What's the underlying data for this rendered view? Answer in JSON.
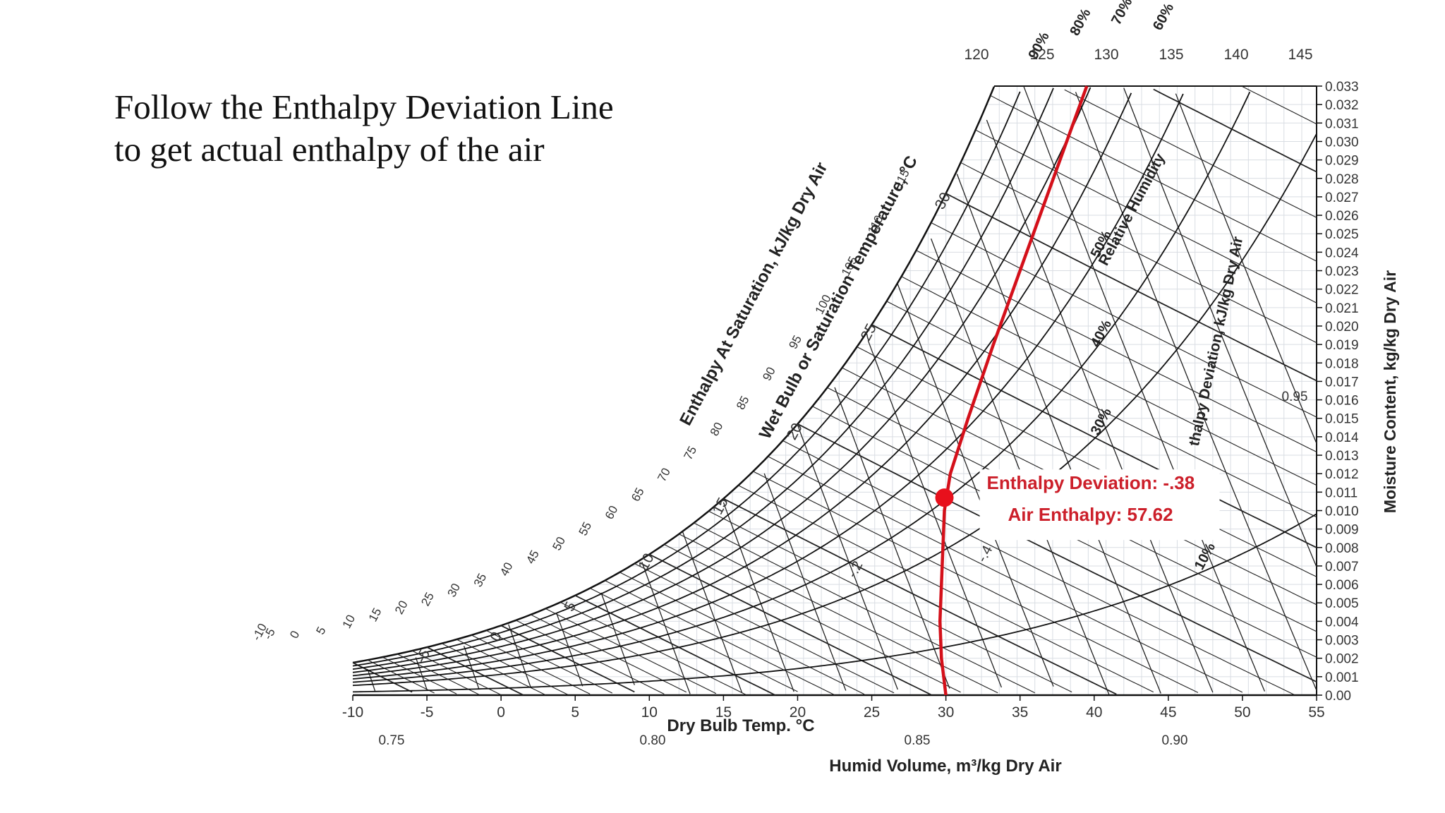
{
  "caption": {
    "line1": "Follow the Enthalpy Deviation Line",
    "line2": "to get actual enthalpy of the air"
  },
  "chart_data": {
    "type": "line",
    "title": "",
    "xlabel": "Dry Bulb Temp. °C",
    "ylabel": "Moisture Content, kg/kg Dry Air",
    "volume_label": "Humid Volume, m³/kg Dry Air",
    "sat_enthalpy_label": "Enthalpy At Saturation, kJ/kg Dry Air",
    "wet_bulb_label": "Wet Bulb or Saturation Temperature, °C",
    "rh_label": "Relative Humidity",
    "deviation_label": "thalpy Deviation, kJ/kg Dry Air",
    "xlim": [
      -10,
      55
    ],
    "ylim": [
      0,
      0.033
    ],
    "x_ticks": [
      "-10",
      "-5",
      "0",
      "5",
      "10",
      "15",
      "20",
      "25",
      "30",
      "35",
      "40",
      "45",
      "50",
      "55"
    ],
    "y_ticks": [
      "0.00",
      "0.001",
      "0.002",
      "0.003",
      "0.004",
      "0.005",
      "0.006",
      "0.007",
      "0.008",
      "0.009",
      "0.010",
      "0.011",
      "0.012",
      "0.013",
      "0.014",
      "0.015",
      "0.016",
      "0.017",
      "0.018",
      "0.019",
      "0.020",
      "0.021",
      "0.022",
      "0.023",
      "0.024",
      "0.025",
      "0.026",
      "0.027",
      "0.028",
      "0.029",
      "0.030",
      "0.031",
      "0.032",
      "0.033"
    ],
    "top_enthalpy_ticks": [
      "120",
      "125",
      "130",
      "135",
      "140",
      "145"
    ],
    "diag_enthalpy_ticks": [
      "-10",
      "-5",
      "0",
      "5",
      "10",
      "15",
      "20",
      "25",
      "30",
      "35",
      "40",
      "45",
      "50",
      "55",
      "60",
      "65",
      "70",
      "75",
      "80",
      "85",
      "90",
      "95",
      "100",
      "105",
      "110",
      "115"
    ],
    "wet_bulb_ticks": [
      "-5",
      "0",
      "5",
      "10",
      "15",
      "20",
      "25",
      "30"
    ],
    "volume_ticks": [
      "0.75",
      "0.80",
      "0.85",
      "0.90",
      "0.95"
    ],
    "deviation_ticks": [
      "-.2",
      "-.4"
    ],
    "rh_curves": [
      {
        "label": "90%",
        "rh": 0.9
      },
      {
        "label": "80%",
        "rh": 0.8
      },
      {
        "label": "70%",
        "rh": 0.7
      },
      {
        "label": "60%",
        "rh": 0.6
      },
      {
        "label": "50%",
        "rh": 0.5
      },
      {
        "label": "40%",
        "rh": 0.4
      },
      {
        "label": "30%",
        "rh": 0.3
      },
      {
        "label": "10%",
        "rh": 0.1
      }
    ],
    "deviation_line": {
      "color": "#d4101a",
      "points": [
        [
          30,
          0.0
        ],
        [
          29.7,
          0.002
        ],
        [
          29.6,
          0.004
        ],
        [
          29.7,
          0.006
        ],
        [
          29.8,
          0.008
        ],
        [
          29.9,
          0.01
        ],
        [
          30.3,
          0.012
        ],
        [
          31.5,
          0.015
        ],
        [
          33.2,
          0.019
        ],
        [
          35.0,
          0.023
        ],
        [
          36.8,
          0.027
        ],
        [
          38.6,
          0.031
        ],
        [
          39.5,
          0.033
        ]
      ]
    },
    "marker": {
      "x": 29.9,
      "y": 0.0107,
      "deviation_text": "Enthalpy Deviation: -.38",
      "enthalpy_text": "Air Enthalpy: 57.62"
    },
    "grid": true
  }
}
